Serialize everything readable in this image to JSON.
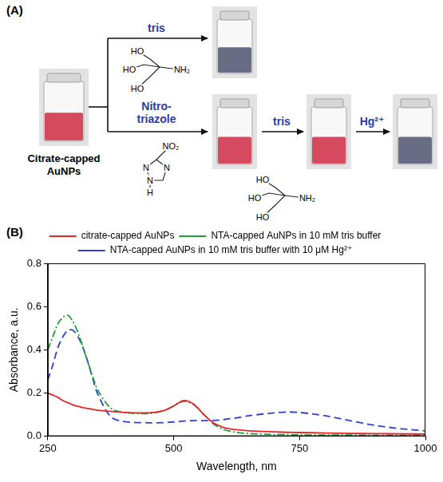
{
  "diagram": {
    "label": "(A)",
    "start": "Citrate-capped AuNPs",
    "top_branch": {
      "reagent": "tris",
      "structure_labels": [
        "HO",
        "HO",
        "HO",
        "NH₂"
      ]
    },
    "bottom_branch": [
      {
        "reagent": "Nitro-triazole",
        "structure_labels": [
          "NO₂",
          "N",
          "N",
          "N",
          "H"
        ]
      },
      {
        "reagent": "tris",
        "structure_labels": [
          "HO",
          "HO",
          "HO",
          "NH₂"
        ]
      },
      {
        "reagent": "Hg²⁺"
      }
    ]
  },
  "chart_label": "(B)",
  "chart_data": {
    "type": "line",
    "x_label": "Wavelength, nm",
    "y_label": "Absorbance, a.u.",
    "xlim": [
      250,
      1000
    ],
    "xticks": [
      250,
      500,
      750,
      1000
    ],
    "ylim": [
      0,
      0.8
    ],
    "yticks": [
      {
        "value": 0,
        "label": "0.0"
      },
      {
        "value": 0.2,
        "label": "0.2"
      },
      {
        "value": 0.4,
        "label": "0.4"
      },
      {
        "value": 0.6,
        "label": "0.6"
      },
      {
        "value": 0.8,
        "label": "0.8"
      }
    ],
    "grid": false,
    "legend": "top",
    "x": [
      250,
      260,
      270,
      280,
      290,
      300,
      310,
      320,
      330,
      340,
      350,
      375,
      400,
      450,
      480,
      500,
      520,
      540,
      560,
      580,
      600,
      625,
      650,
      700,
      725,
      750,
      800,
      850,
      900,
      950,
      1000
    ],
    "series": [
      {
        "name": "citrate-capped AuNPs",
        "color": "#e8252a",
        "line_style": "solid",
        "values": [
          0.2,
          0.19,
          0.18,
          0.165,
          0.155,
          0.145,
          0.138,
          0.132,
          0.128,
          0.124,
          0.12,
          0.115,
          0.11,
          0.108,
          0.118,
          0.14,
          0.165,
          0.148,
          0.1,
          0.06,
          0.04,
          0.03,
          0.025,
          0.02,
          0.018,
          0.017,
          0.015,
          0.013,
          0.012,
          0.011,
          0.01
        ]
      },
      {
        "name": "NTA-capped AuNPs in 10 mM tris buffer",
        "color": "#1f9e3a",
        "line_style": "dashdot",
        "values": [
          0.4,
          0.46,
          0.52,
          0.55,
          0.56,
          0.53,
          0.48,
          0.41,
          0.34,
          0.27,
          0.21,
          0.13,
          0.11,
          0.105,
          0.118,
          0.14,
          0.162,
          0.145,
          0.1,
          0.055,
          0.03,
          0.018,
          0.012,
          0.008,
          0.007,
          0.006,
          0.005,
          0.005,
          0.004,
          0.004,
          0.004
        ]
      },
      {
        "name": "NTA-capped AuNPs in 10 mM tris buffer with 10 μM Hg²⁺",
        "color": "#2f3fd6",
        "line_style": "dash",
        "values": [
          0.26,
          0.33,
          0.41,
          0.46,
          0.49,
          0.49,
          0.46,
          0.41,
          0.34,
          0.26,
          0.19,
          0.09,
          0.068,
          0.062,
          0.063,
          0.066,
          0.07,
          0.072,
          0.072,
          0.073,
          0.077,
          0.085,
          0.095,
          0.108,
          0.112,
          0.11,
          0.095,
          0.072,
          0.05,
          0.035,
          0.025
        ]
      }
    ]
  }
}
